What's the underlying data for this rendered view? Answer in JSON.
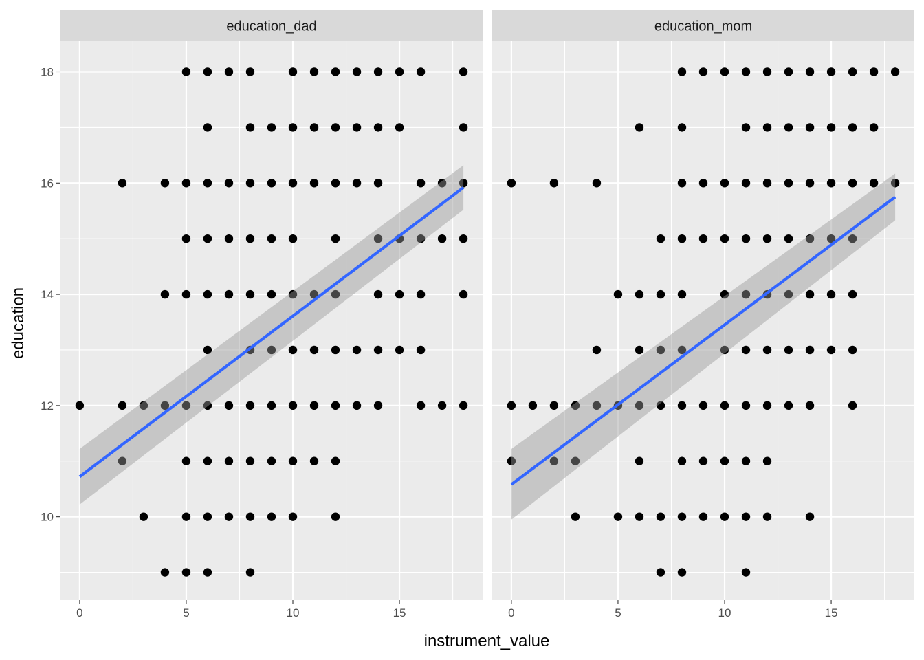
{
  "chart_data": {
    "type": "scatter",
    "xlabel": "instrument_value",
    "ylabel": "education",
    "xlim": [
      -0.9,
      18.9
    ],
    "ylim": [
      8.5,
      18.55
    ],
    "x_ticks": [
      0,
      5,
      10,
      15
    ],
    "x_tick_labels": [
      "0",
      "5",
      "10",
      "15"
    ],
    "y_ticks": [
      10,
      12,
      14,
      16,
      18
    ],
    "y_tick_labels": [
      "10",
      "12",
      "14",
      "16",
      "18"
    ],
    "grid": true,
    "colors": {
      "panel_bg": "#ebebeb",
      "strip_bg": "#d9d9d9",
      "grid": "#ffffff",
      "points": "#000000",
      "fit_line": "#3366ff",
      "confidence_band": "#999999"
    },
    "panels": [
      {
        "strip": "education_dad",
        "fit": {
          "x": [
            0,
            18
          ],
          "y": [
            10.72,
            15.92
          ],
          "ci_low": [
            10.22,
            15.52
          ],
          "ci_high": [
            11.22,
            16.32
          ]
        },
        "points": [
          [
            0,
            12
          ],
          [
            2,
            16
          ],
          [
            2,
            12
          ],
          [
            2,
            11
          ],
          [
            3,
            12
          ],
          [
            3,
            10
          ],
          [
            4,
            16
          ],
          [
            4,
            14
          ],
          [
            4,
            12
          ],
          [
            4,
            9
          ],
          [
            5,
            18
          ],
          [
            5,
            16
          ],
          [
            5,
            15
          ],
          [
            5,
            14
          ],
          [
            5,
            12
          ],
          [
            5,
            11
          ],
          [
            5,
            10
          ],
          [
            5,
            9
          ],
          [
            6,
            18
          ],
          [
            6,
            17
          ],
          [
            6,
            16
          ],
          [
            6,
            15
          ],
          [
            6,
            14
          ],
          [
            6,
            13
          ],
          [
            6,
            12
          ],
          [
            6,
            11
          ],
          [
            6,
            10
          ],
          [
            6,
            9
          ],
          [
            7,
            18
          ],
          [
            7,
            16
          ],
          [
            7,
            15
          ],
          [
            7,
            14
          ],
          [
            7,
            12
          ],
          [
            7,
            11
          ],
          [
            7,
            10
          ],
          [
            8,
            18
          ],
          [
            8,
            17
          ],
          [
            8,
            16
          ],
          [
            8,
            15
          ],
          [
            8,
            14
          ],
          [
            8,
            13
          ],
          [
            8,
            12
          ],
          [
            8,
            11
          ],
          [
            8,
            10
          ],
          [
            8,
            9
          ],
          [
            9,
            17
          ],
          [
            9,
            16
          ],
          [
            9,
            15
          ],
          [
            9,
            14
          ],
          [
            9,
            13
          ],
          [
            9,
            12
          ],
          [
            9,
            11
          ],
          [
            9,
            10
          ],
          [
            10,
            18
          ],
          [
            10,
            17
          ],
          [
            10,
            16
          ],
          [
            10,
            15
          ],
          [
            10,
            14
          ],
          [
            10,
            13
          ],
          [
            10,
            12
          ],
          [
            10,
            11
          ],
          [
            10,
            10
          ],
          [
            11,
            18
          ],
          [
            11,
            17
          ],
          [
            11,
            16
          ],
          [
            11,
            14
          ],
          [
            11,
            13
          ],
          [
            11,
            12
          ],
          [
            11,
            11
          ],
          [
            12,
            18
          ],
          [
            12,
            17
          ],
          [
            12,
            16
          ],
          [
            12,
            15
          ],
          [
            12,
            14
          ],
          [
            12,
            13
          ],
          [
            12,
            12
          ],
          [
            12,
            11
          ],
          [
            12,
            10
          ],
          [
            13,
            18
          ],
          [
            13,
            17
          ],
          [
            13,
            16
          ],
          [
            13,
            13
          ],
          [
            13,
            12
          ],
          [
            14,
            18
          ],
          [
            14,
            17
          ],
          [
            14,
            16
          ],
          [
            14,
            15
          ],
          [
            14,
            14
          ],
          [
            14,
            13
          ],
          [
            14,
            12
          ],
          [
            15,
            18
          ],
          [
            15,
            17
          ],
          [
            15,
            15
          ],
          [
            15,
            14
          ],
          [
            15,
            13
          ],
          [
            16,
            18
          ],
          [
            16,
            16
          ],
          [
            16,
            15
          ],
          [
            16,
            14
          ],
          [
            16,
            13
          ],
          [
            16,
            12
          ],
          [
            17,
            16
          ],
          [
            17,
            15
          ],
          [
            17,
            12
          ],
          [
            18,
            18
          ],
          [
            18,
            17
          ],
          [
            18,
            16
          ],
          [
            18,
            15
          ],
          [
            18,
            14
          ],
          [
            18,
            12
          ]
        ]
      },
      {
        "strip": "education_mom",
        "fit": {
          "x": [
            0,
            18
          ],
          "y": [
            10.58,
            15.75
          ],
          "ci_low": [
            9.95,
            15.33
          ],
          "ci_high": [
            11.22,
            16.17
          ]
        },
        "points": [
          [
            0,
            16
          ],
          [
            0,
            12
          ],
          [
            0,
            11
          ],
          [
            1,
            12
          ],
          [
            2,
            16
          ],
          [
            2,
            12
          ],
          [
            2,
            11
          ],
          [
            3,
            12
          ],
          [
            3,
            11
          ],
          [
            3,
            10
          ],
          [
            4,
            16
          ],
          [
            4,
            13
          ],
          [
            4,
            12
          ],
          [
            5,
            14
          ],
          [
            5,
            12
          ],
          [
            5,
            10
          ],
          [
            6,
            17
          ],
          [
            6,
            14
          ],
          [
            6,
            13
          ],
          [
            6,
            12
          ],
          [
            6,
            11
          ],
          [
            6,
            10
          ],
          [
            7,
            15
          ],
          [
            7,
            14
          ],
          [
            7,
            13
          ],
          [
            7,
            12
          ],
          [
            7,
            10
          ],
          [
            7,
            9
          ],
          [
            8,
            18
          ],
          [
            8,
            17
          ],
          [
            8,
            16
          ],
          [
            8,
            15
          ],
          [
            8,
            14
          ],
          [
            8,
            13
          ],
          [
            8,
            12
          ],
          [
            8,
            11
          ],
          [
            8,
            10
          ],
          [
            8,
            9
          ],
          [
            9,
            18
          ],
          [
            9,
            16
          ],
          [
            9,
            15
          ],
          [
            9,
            12
          ],
          [
            9,
            11
          ],
          [
            9,
            10
          ],
          [
            10,
            18
          ],
          [
            10,
            16
          ],
          [
            10,
            15
          ],
          [
            10,
            14
          ],
          [
            10,
            13
          ],
          [
            10,
            12
          ],
          [
            10,
            11
          ],
          [
            10,
            10
          ],
          [
            11,
            18
          ],
          [
            11,
            17
          ],
          [
            11,
            16
          ],
          [
            11,
            15
          ],
          [
            11,
            14
          ],
          [
            11,
            13
          ],
          [
            11,
            12
          ],
          [
            11,
            11
          ],
          [
            11,
            10
          ],
          [
            11,
            9
          ],
          [
            12,
            18
          ],
          [
            12,
            17
          ],
          [
            12,
            16
          ],
          [
            12,
            15
          ],
          [
            12,
            14
          ],
          [
            12,
            13
          ],
          [
            12,
            12
          ],
          [
            12,
            11
          ],
          [
            12,
            10
          ],
          [
            13,
            18
          ],
          [
            13,
            17
          ],
          [
            13,
            16
          ],
          [
            13,
            15
          ],
          [
            13,
            14
          ],
          [
            13,
            13
          ],
          [
            13,
            12
          ],
          [
            14,
            18
          ],
          [
            14,
            17
          ],
          [
            14,
            16
          ],
          [
            14,
            15
          ],
          [
            14,
            14
          ],
          [
            14,
            13
          ],
          [
            14,
            12
          ],
          [
            14,
            10
          ],
          [
            15,
            18
          ],
          [
            15,
            17
          ],
          [
            15,
            16
          ],
          [
            15,
            15
          ],
          [
            15,
            14
          ],
          [
            15,
            13
          ],
          [
            16,
            18
          ],
          [
            16,
            17
          ],
          [
            16,
            16
          ],
          [
            16,
            15
          ],
          [
            16,
            14
          ],
          [
            16,
            13
          ],
          [
            16,
            12
          ],
          [
            17,
            18
          ],
          [
            17,
            17
          ],
          [
            17,
            16
          ],
          [
            18,
            18
          ],
          [
            18,
            16
          ]
        ]
      }
    ]
  }
}
